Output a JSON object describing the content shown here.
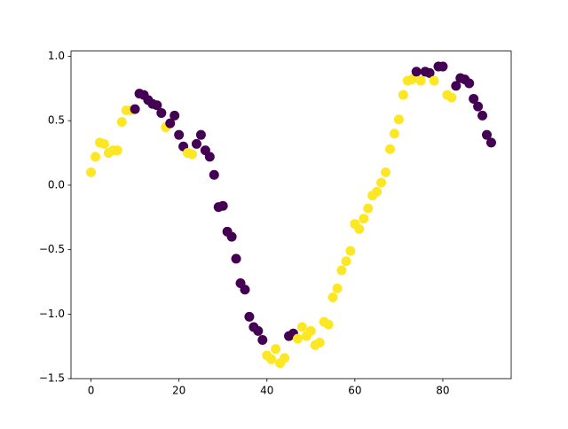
{
  "chart_data": {
    "type": "scatter",
    "x": [
      0,
      1,
      2,
      3,
      4,
      5,
      6,
      7,
      8,
      9,
      10,
      11,
      12,
      13,
      14,
      15,
      16,
      17,
      18,
      19,
      20,
      21,
      22,
      23,
      24,
      25,
      26,
      27,
      28,
      29,
      30,
      31,
      32,
      33,
      34,
      35,
      36,
      37,
      38,
      39,
      40,
      41,
      42,
      43,
      44,
      45,
      46,
      47,
      48,
      49,
      50,
      51,
      52,
      53,
      54,
      55,
      56,
      57,
      58,
      59,
      60,
      61,
      62,
      63,
      64,
      65,
      66,
      67,
      68,
      69,
      70,
      71,
      72,
      73,
      74,
      75,
      76,
      77,
      78,
      79,
      80,
      81,
      82,
      83,
      84,
      85,
      86,
      87,
      88,
      89,
      90,
      91
    ],
    "values": [
      0.1,
      0.22,
      0.33,
      0.32,
      0.25,
      0.27,
      0.27,
      0.49,
      0.58,
      0.58,
      0.59,
      0.71,
      0.7,
      0.66,
      0.63,
      0.62,
      0.56,
      0.45,
      0.48,
      0.54,
      0.39,
      0.3,
      0.25,
      0.24,
      0.32,
      0.39,
      0.27,
      0.22,
      0.08,
      -0.17,
      -0.16,
      -0.36,
      -0.4,
      -0.57,
      -0.76,
      -0.81,
      -1.02,
      -1.1,
      -1.13,
      -1.2,
      -1.32,
      -1.35,
      -1.27,
      -1.38,
      -1.34,
      -1.17,
      -1.15,
      -1.19,
      -1.1,
      -1.17,
      -1.13,
      -1.24,
      -1.22,
      -1.06,
      -1.08,
      -0.87,
      -0.8,
      -0.66,
      -0.59,
      -0.51,
      -0.3,
      -0.34,
      -0.26,
      -0.18,
      -0.08,
      -0.05,
      0.02,
      0.1,
      0.28,
      0.4,
      0.51,
      0.7,
      0.81,
      0.82,
      0.88,
      0.81,
      0.88,
      0.87,
      0.81,
      0.92,
      0.92,
      0.7,
      0.68,
      0.77,
      0.83,
      0.82,
      0.79,
      0.67,
      0.61,
      0.54,
      0.39,
      0.33
    ],
    "colors": [
      "#fde725",
      "#fde725",
      "#fde725",
      "#fde725",
      "#fde725",
      "#fde725",
      "#fde725",
      "#fde725",
      "#fde725",
      "#fde725",
      "#440154",
      "#440154",
      "#440154",
      "#440154",
      "#440154",
      "#440154",
      "#440154",
      "#fde725",
      "#440154",
      "#440154",
      "#440154",
      "#440154",
      "#fde725",
      "#fde725",
      "#440154",
      "#440154",
      "#440154",
      "#440154",
      "#440154",
      "#440154",
      "#440154",
      "#440154",
      "#440154",
      "#440154",
      "#440154",
      "#440154",
      "#440154",
      "#440154",
      "#440154",
      "#440154",
      "#fde725",
      "#fde725",
      "#fde725",
      "#fde725",
      "#fde725",
      "#440154",
      "#440154",
      "#fde725",
      "#fde725",
      "#fde725",
      "#fde725",
      "#fde725",
      "#fde725",
      "#fde725",
      "#fde725",
      "#fde725",
      "#fde725",
      "#fde725",
      "#fde725",
      "#fde725",
      "#fde725",
      "#fde725",
      "#fde725",
      "#fde725",
      "#fde725",
      "#fde725",
      "#fde725",
      "#fde725",
      "#fde725",
      "#fde725",
      "#fde725",
      "#fde725",
      "#fde725",
      "#fde725",
      "#440154",
      "#fde725",
      "#440154",
      "#440154",
      "#fde725",
      "#440154",
      "#440154",
      "#fde725",
      "#fde725",
      "#440154",
      "#440154",
      "#440154",
      "#440154",
      "#440154",
      "#440154",
      "#440154",
      "#440154",
      "#440154"
    ],
    "xlim": [
      -4.55,
      95.55
    ],
    "ylim": [
      -1.5,
      1.04
    ],
    "xticks": [
      0,
      20,
      40,
      60,
      80
    ],
    "yticks": [
      {
        "value": -1.5,
        "label": "−1.5"
      },
      {
        "value": -1.0,
        "label": "−1.0"
      },
      {
        "value": -0.5,
        "label": "−0.5"
      },
      {
        "value": 0.0,
        "label": "0.0"
      },
      {
        "value": 0.5,
        "label": "0.5"
      },
      {
        "value": 1.0,
        "label": "1.0"
      }
    ]
  }
}
